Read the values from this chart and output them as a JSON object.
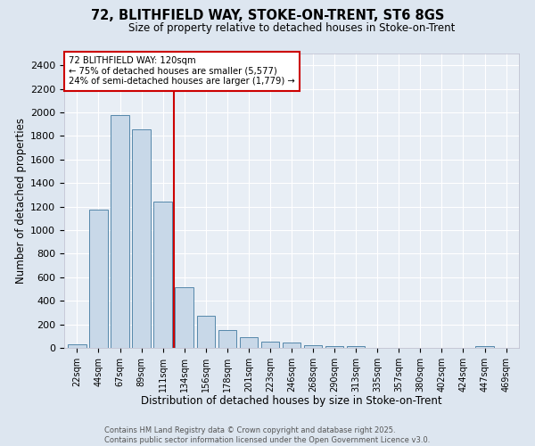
{
  "title1": "72, BLITHFIELD WAY, STOKE-ON-TRENT, ST6 8GS",
  "title2": "Size of property relative to detached houses in Stoke-on-Trent",
  "xlabel": "Distribution of detached houses by size in Stoke-on-Trent",
  "ylabel": "Number of detached properties",
  "categories": [
    "22sqm",
    "44sqm",
    "67sqm",
    "89sqm",
    "111sqm",
    "134sqm",
    "156sqm",
    "178sqm",
    "201sqm",
    "223sqm",
    "246sqm",
    "268sqm",
    "290sqm",
    "313sqm",
    "335sqm",
    "357sqm",
    "380sqm",
    "402sqm",
    "424sqm",
    "447sqm",
    "469sqm"
  ],
  "values": [
    28,
    1175,
    1975,
    1855,
    1245,
    515,
    270,
    155,
    90,
    52,
    42,
    22,
    18,
    12,
    0,
    0,
    0,
    0,
    0,
    15,
    0
  ],
  "bar_color": "#c8d8e8",
  "bar_edge_color": "#5588aa",
  "vline_x_idx": 4,
  "vline_color": "#cc0000",
  "annotation_text": "72 BLITHFIELD WAY: 120sqm\n← 75% of detached houses are smaller (5,577)\n24% of semi-detached houses are larger (1,779) →",
  "annotation_box_color": "#ffffff",
  "annotation_box_edge": "#cc0000",
  "ylim": [
    0,
    2500
  ],
  "yticks": [
    0,
    200,
    400,
    600,
    800,
    1000,
    1200,
    1400,
    1600,
    1800,
    2000,
    2200,
    2400
  ],
  "footer1": "Contains HM Land Registry data © Crown copyright and database right 2025.",
  "footer2": "Contains public sector information licensed under the Open Government Licence v3.0.",
  "bg_color": "#dde6f0",
  "plot_bg_color": "#e8eef5"
}
